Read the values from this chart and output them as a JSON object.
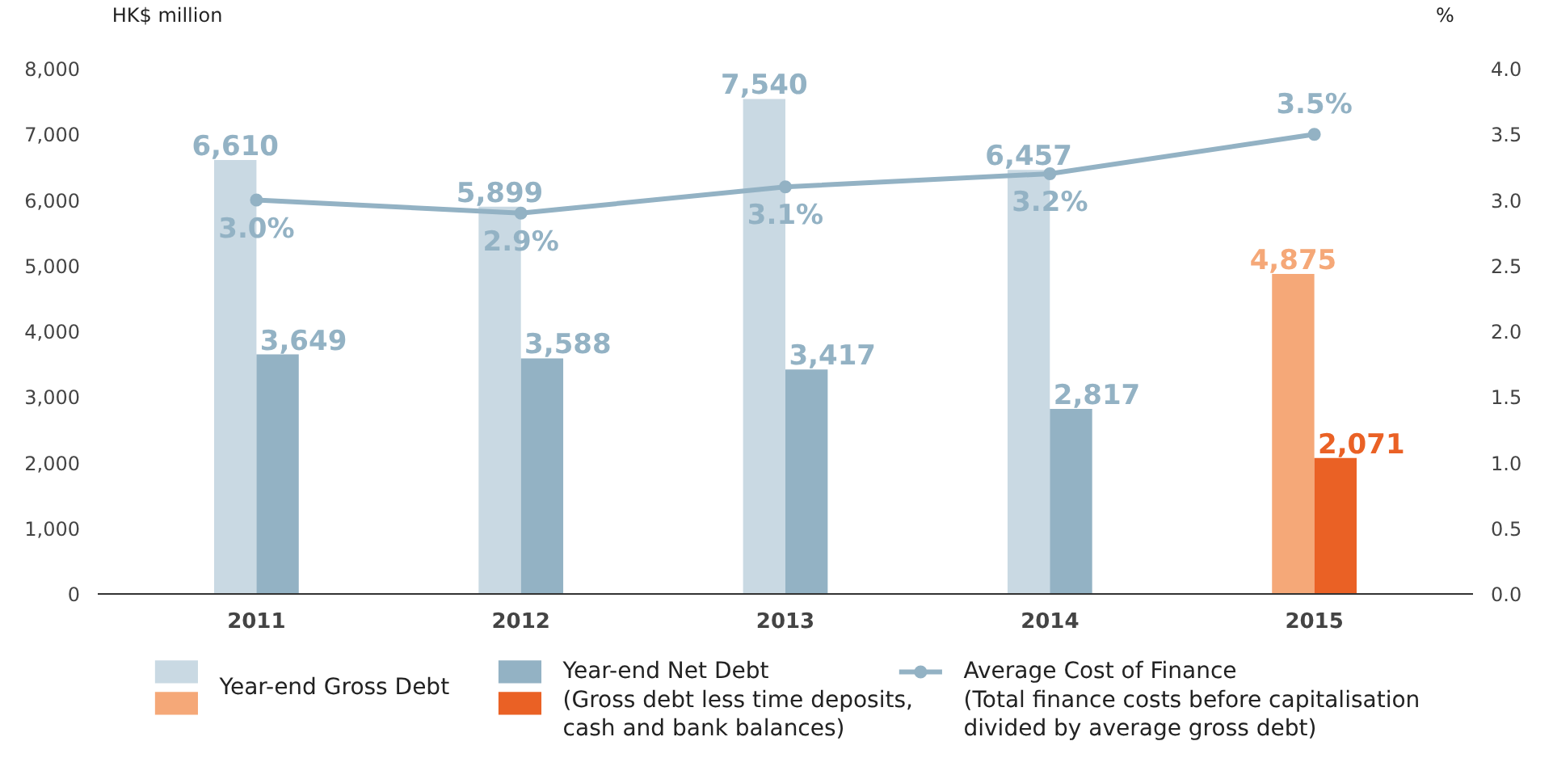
{
  "chart_data": {
    "type": "bar",
    "ylabel": "HK$ million",
    "y2label": "%",
    "categories": [
      "2011",
      "2012",
      "2013",
      "2014",
      "2015"
    ],
    "series": [
      {
        "name": "Year-end Gross Debt",
        "colors": [
          "#c9d9e3",
          "#c9d9e3",
          "#c9d9e3",
          "#c9d9e3",
          "#f5a878"
        ],
        "values": [
          6610,
          5899,
          7540,
          6457,
          4875
        ],
        "value_labels": [
          "6,610",
          "5,899",
          "7,540",
          "6,457",
          "4,875"
        ]
      },
      {
        "name": "Year-end Net Debt\n(Gross debt less time deposits,\ncash and bank balances)",
        "colors": [
          "#93b2c4",
          "#93b2c4",
          "#93b2c4",
          "#93b2c4",
          "#ea6125"
        ],
        "values": [
          3649,
          3588,
          3417,
          2817,
          2071
        ],
        "value_labels": [
          "3,649",
          "3,588",
          "3,417",
          "2,817",
          "2,071"
        ]
      },
      {
        "name": "Average Cost of Finance\n(Total finance costs before capitalisation\ndivided by average gross debt)",
        "type": "line",
        "axis": "y2",
        "color": "#93b2c4",
        "marker": "circle",
        "values": [
          3.0,
          2.9,
          3.1,
          3.2,
          3.5
        ],
        "value_labels": [
          "3.0%",
          "2.9%",
          "3.1%",
          "3.2%",
          "3.5%"
        ]
      }
    ],
    "ylim": [
      0,
      8000
    ],
    "yticks": [
      0,
      {
        "value": 1000,
        "label": "1,000"
      },
      {
        "value": 2000,
        "label": "2,000"
      },
      {
        "value": 3000,
        "label": "3,000"
      },
      {
        "value": 4000,
        "label": "4,000"
      },
      {
        "value": 5000,
        "label": "5,000"
      },
      {
        "value": 6000,
        "label": "6,000"
      },
      {
        "value": 7000,
        "label": "7,000"
      },
      {
        "value": 8000,
        "label": "8,000"
      }
    ],
    "y2lim": [
      0,
      4.0
    ],
    "y2ticks": [
      {
        "value": 0,
        "label": "0.0"
      },
      {
        "value": 0.5,
        "label": "0.5"
      },
      {
        "value": 1.0,
        "label": "1.0"
      },
      {
        "value": 1.5,
        "label": "1.5"
      },
      {
        "value": 2.0,
        "label": "2.0"
      },
      {
        "value": 2.5,
        "label": "2.5"
      },
      {
        "value": 3.0,
        "label": "3.0"
      },
      {
        "value": 3.5,
        "label": "3.5"
      },
      {
        "value": 4.0,
        "label": "4.0"
      }
    ],
    "grid": false,
    "legend": "bottom"
  }
}
